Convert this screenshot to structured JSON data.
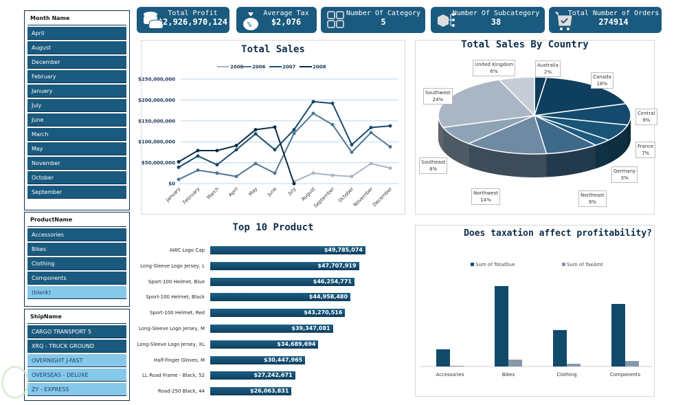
{
  "slicers": {
    "month": {
      "title": "Month Name",
      "items": [
        "April",
        "August",
        "December",
        "February",
        "January",
        "July",
        "June",
        "March",
        "May",
        "November",
        "October",
        "September"
      ]
    },
    "product": {
      "title": "ProductName",
      "items": [
        "Accessories",
        "Bikes",
        "Clothing",
        "Components",
        "(blank)"
      ]
    },
    "ship": {
      "title": "ShipName",
      "items": [
        "CARGO TRANSPORT 5",
        "XRQ - TRUCK GROUND",
        "OVERNIGHT J-FAST",
        "OVERSEAS - DELUXE",
        "ZY - EXPRESS"
      ]
    }
  },
  "kpis": [
    {
      "title": "Total Profit",
      "value": "$2,926,970,124",
      "icon": "coins-icon"
    },
    {
      "title": "Average Tax",
      "value": "$2,076",
      "icon": "money-bag-percent-icon"
    },
    {
      "title": "Number Of Category",
      "value": "5",
      "icon": "grid-icon"
    },
    {
      "title": "Number Of Subcategory",
      "value": "38",
      "icon": "box-hierarchy-icon"
    },
    {
      "title": "Total Number of Orders",
      "value": "274914",
      "icon": "cart-icon"
    }
  ],
  "colors": {
    "accent": "#1a5a7e",
    "dark": "#0d2d4a",
    "light": "#86c8ea"
  },
  "chart_data": [
    {
      "type": "line",
      "title": "Total Sales",
      "legend": "top",
      "categories": [
        "January",
        "February",
        "March",
        "April",
        "May",
        "June",
        "July",
        "August",
        "September",
        "October",
        "November",
        "December"
      ],
      "ylim": [
        0,
        250000000
      ],
      "yticks": [
        "$0",
        "$50,000,000",
        "$100,000,000",
        "$150,000,000",
        "$200,000,000",
        "$250,000,000"
      ],
      "series": [
        {
          "name": "2005",
          "color": "#a9b4c2",
          "values": [
            null,
            null,
            null,
            null,
            null,
            null,
            5000000,
            25000000,
            20000000,
            17000000,
            48000000,
            37000000
          ]
        },
        {
          "name": "2006",
          "color": "#4f7593",
          "values": [
            10000000,
            32000000,
            25000000,
            17000000,
            48000000,
            25000000,
            120000000,
            168000000,
            141000000,
            75000000,
            122000000,
            88000000
          ]
        },
        {
          "name": "2007",
          "color": "#164a6e",
          "values": [
            39000000,
            66000000,
            45000000,
            81000000,
            119000000,
            81000000,
            129000000,
            196000000,
            192000000,
            93000000,
            134000000,
            138000000
          ]
        },
        {
          "name": "2008",
          "color": "#0b2a45",
          "values": [
            52000000,
            79000000,
            79000000,
            91000000,
            129000000,
            135000000,
            0,
            null,
            null,
            null,
            null,
            null
          ]
        }
      ]
    },
    {
      "type": "pie",
      "title": "Total Sales By Country",
      "slices": [
        {
          "label": "Australia",
          "pct": "2%",
          "value": 2,
          "color": "#0d3b5a"
        },
        {
          "label": "Canada",
          "pct": "18%",
          "value": 18,
          "color": "#0f3f5f"
        },
        {
          "label": "Central",
          "pct": "9%",
          "value": 9,
          "color": "#134a6d"
        },
        {
          "label": "France",
          "pct": "7%",
          "value": 7,
          "color": "#1a5577"
        },
        {
          "label": "Germany",
          "pct": "3%",
          "value": 3,
          "color": "#1d5a80"
        },
        {
          "label": "Northeast",
          "pct": "9%",
          "value": 9,
          "color": "#3e6a8a"
        },
        {
          "label": "Northwest",
          "pct": "14%",
          "value": 14,
          "color": "#6f8aa3"
        },
        {
          "label": "Southeast",
          "pct": "8%",
          "value": 8,
          "color": "#8ea3b6"
        },
        {
          "label": "Southwest",
          "pct": "24%",
          "value": 24,
          "color": "#aab6c4"
        },
        {
          "label": "United Kingdom",
          "pct": "6%",
          "value": 6,
          "color": "#c5ccd6"
        }
      ]
    },
    {
      "type": "bar",
      "title": "Top 10 Product",
      "orientation": "horizontal",
      "categories": [
        "AWC Logo Cap",
        "Long-Sleeve Logo Jersey, L",
        "Sport-100 Helmet, Blue",
        "Sport-100 Helmet, Black",
        "Sport-100 Helmet, Red",
        "Long-Sleeve Logo Jersey, M",
        "Long-Sleeve Logo Jersey, XL",
        "Half-Finger Gloves, M",
        "LL Road Frame - Black, 52",
        "Road-250 Black, 44"
      ],
      "values": [
        49785074,
        47707919,
        46254771,
        44958480,
        43270516,
        39347081,
        34689694,
        30447965,
        27242671,
        26063831
      ],
      "labels": [
        "$49,785,074",
        "$47,707,919",
        "$46,254,771",
        "$44,958,480",
        "$43,270,516",
        "$39,347,081",
        "$34,689,694",
        "$30,447,965",
        "$27,242,671",
        "$26,063,831"
      ]
    },
    {
      "type": "bar",
      "title": "Does taxation affect profitability?",
      "legend": "top",
      "categories": [
        "Accessories",
        "Bikes",
        "Clothing",
        "Components"
      ],
      "series": [
        {
          "name": "Sum of TotalDue",
          "color": "#124a6c",
          "values": [
            25,
            117,
            53,
            91
          ]
        },
        {
          "name": "Sum of TaxAmt",
          "color": "#8898aa",
          "values": [
            1,
            10,
            4,
            8
          ]
        }
      ]
    }
  ]
}
